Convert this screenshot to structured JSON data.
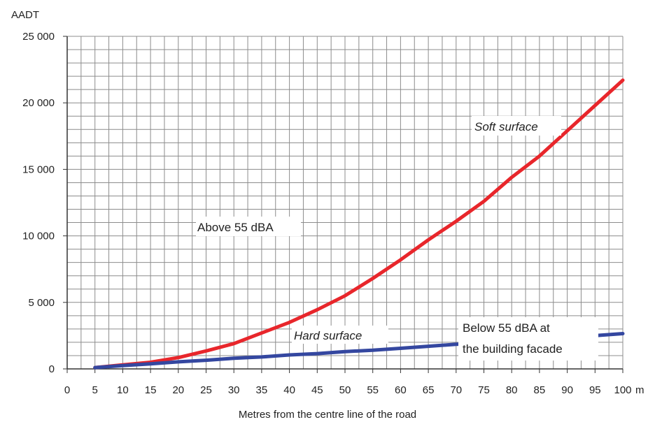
{
  "chart_data": {
    "type": "line",
    "ylabel": "AADT",
    "xlabel": "Metres from the centre line of the road",
    "x_unit": "m",
    "xlim": [
      0,
      100
    ],
    "ylim": [
      0,
      25000
    ],
    "grid": true,
    "x_ticks": [
      0,
      5,
      10,
      15,
      20,
      25,
      30,
      35,
      40,
      45,
      50,
      55,
      60,
      65,
      70,
      75,
      80,
      85,
      90,
      95,
      100
    ],
    "y_ticks": [
      0,
      5000,
      10000,
      15000,
      20000,
      25000
    ],
    "y_tick_labels": [
      "0",
      "5 000",
      "10 000",
      "15 000",
      "20 000",
      "25 000"
    ],
    "series": [
      {
        "name": "Soft surface",
        "color": "#e8262b",
        "x": [
          5,
          10,
          15,
          20,
          25,
          30,
          35,
          40,
          45,
          50,
          55,
          60,
          65,
          70,
          75,
          80,
          85,
          90,
          95,
          100
        ],
        "values": [
          100,
          300,
          500,
          850,
          1350,
          1900,
          2700,
          3500,
          4450,
          5500,
          6800,
          8200,
          9700,
          11100,
          12600,
          14400,
          16000,
          17900,
          19800,
          21700
        ]
      },
      {
        "name": "Hard surface",
        "color": "#3447a0",
        "x": [
          5,
          10,
          15,
          20,
          25,
          30,
          35,
          40,
          45,
          50,
          55,
          60,
          65,
          70,
          75,
          80,
          85,
          90,
          95,
          100
        ],
        "values": [
          100,
          250,
          380,
          530,
          650,
          800,
          900,
          1050,
          1150,
          1300,
          1400,
          1550,
          1700,
          1850,
          1950,
          2100,
          2250,
          2400,
          2500,
          2650
        ]
      }
    ],
    "annotations": [
      {
        "text": "Soft surface",
        "style": "italic"
      },
      {
        "text": "Above 55 dBA",
        "style": "normal"
      },
      {
        "text": "Hard surface",
        "style": "italic"
      },
      {
        "text": "Below 55 dBA at",
        "style": "normal"
      },
      {
        "text": "the building facade",
        "style": "normal"
      }
    ]
  }
}
